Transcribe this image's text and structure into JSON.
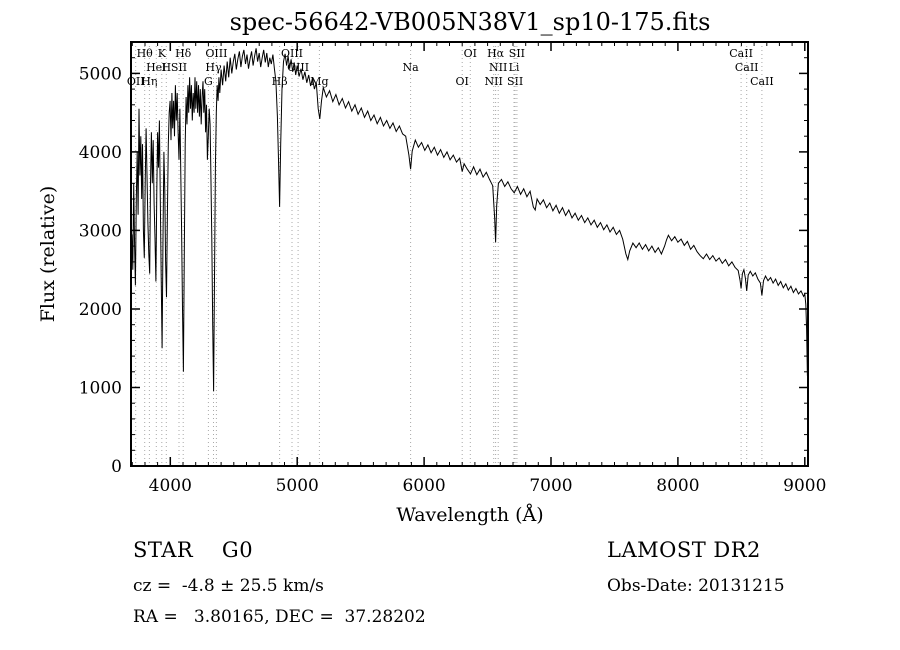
{
  "title": "spec-56642-VB005N38V1_sp10-175.fits",
  "footer": {
    "class_label": "STAR    G0",
    "survey": "LAMOST DR2",
    "cz": "cz =  -4.8 ± 25.5 km/s",
    "obs_date": "Obs-Date: 20131215",
    "coords": "RA =   3.80165, DEC =  37.28202"
  },
  "chart_data": {
    "type": "line",
    "title": "spec-56642-VB005N38V1_sp10-175.fits",
    "xlabel": "Wavelength (Å)",
    "ylabel": "Flux (relative)",
    "xlim": [
      3690,
      9025
    ],
    "ylim": [
      0,
      5400
    ],
    "x_ticks": [
      4000,
      5000,
      6000,
      7000,
      8000,
      9000
    ],
    "y_ticks": [
      0,
      1000,
      2000,
      3000,
      4000,
      5000
    ],
    "x_minor_step": 100,
    "y_minor_step": 200,
    "grid": false,
    "legend": "none",
    "line_color": "#000000",
    "marker_line_color": "#a9a9a9",
    "line_markers": [
      {
        "label": "OII",
        "wavelength": 3727,
        "row": 2
      },
      {
        "label": "Hθ",
        "wavelength": 3798,
        "row": 0
      },
      {
        "label": "Hη",
        "wavelength": 3835,
        "row": 2
      },
      {
        "label": "HeI",
        "wavelength": 3889,
        "row": 1
      },
      {
        "label": "K",
        "wavelength": 3933,
        "row": 0
      },
      {
        "label": "H",
        "wavelength": 3968,
        "row": 1
      },
      {
        "label": "SII",
        "wavelength": 4068,
        "row": 1
      },
      {
        "label": "Hδ",
        "wavelength": 4101,
        "row": 0
      },
      {
        "label": "G",
        "wavelength": 4300,
        "row": 2
      },
      {
        "label": "Hγ",
        "wavelength": 4340,
        "row": 1
      },
      {
        "label": "OIII",
        "wavelength": 4363,
        "row": 0
      },
      {
        "label": "Hβ",
        "wavelength": 4861,
        "row": 2
      },
      {
        "label": "OIII",
        "wavelength": 4959,
        "row": 0
      },
      {
        "label": "OIII",
        "wavelength": 5007,
        "row": 1
      },
      {
        "label": "Mg",
        "wavelength": 5175,
        "row": 2
      },
      {
        "label": "Na",
        "wavelength": 5893,
        "row": 1
      },
      {
        "label": "OI",
        "wavelength": 6300,
        "row": 2
      },
      {
        "label": "OI",
        "wavelength": 6364,
        "row": 0
      },
      {
        "label": "NII",
        "wavelength": 6548,
        "row": 2
      },
      {
        "label": "Hα",
        "wavelength": 6563,
        "row": 0
      },
      {
        "label": "NII",
        "wavelength": 6584,
        "row": 1
      },
      {
        "label": "Li",
        "wavelength": 6708,
        "row": 1
      },
      {
        "label": "SII",
        "wavelength": 6717,
        "row": 2
      },
      {
        "label": "SII",
        "wavelength": 6731,
        "row": 0
      },
      {
        "label": "CaII",
        "wavelength": 8498,
        "row": 0
      },
      {
        "label": "CaII",
        "wavelength": 8542,
        "row": 1
      },
      {
        "label": "CaII",
        "wavelength": 8662,
        "row": 2
      }
    ],
    "points": [
      [
        3690,
        2250
      ],
      [
        3697,
        2950
      ],
      [
        3704,
        2500
      ],
      [
        3711,
        3600
      ],
      [
        3718,
        2800
      ],
      [
        3725,
        2300
      ],
      [
        3732,
        3400
      ],
      [
        3739,
        4000
      ],
      [
        3746,
        3200
      ],
      [
        3753,
        4550
      ],
      [
        3760,
        3700
      ],
      [
        3767,
        4200
      ],
      [
        3774,
        3400
      ],
      [
        3781,
        4100
      ],
      [
        3788,
        3000
      ],
      [
        3795,
        2650
      ],
      [
        3802,
        3600
      ],
      [
        3809,
        4300
      ],
      [
        3816,
        3700
      ],
      [
        3823,
        3100
      ],
      [
        3830,
        2700
      ],
      [
        3837,
        2450
      ],
      [
        3844,
        3600
      ],
      [
        3851,
        4250
      ],
      [
        3858,
        3600
      ],
      [
        3865,
        4150
      ],
      [
        3872,
        3350
      ],
      [
        3879,
        2900
      ],
      [
        3886,
        2350
      ],
      [
        3893,
        3500
      ],
      [
        3900,
        4250
      ],
      [
        3907,
        3800
      ],
      [
        3914,
        4400
      ],
      [
        3921,
        3400
      ],
      [
        3928,
        2400
      ],
      [
        3935,
        1500
      ],
      [
        3942,
        2900
      ],
      [
        3949,
        4000
      ],
      [
        3956,
        3500
      ],
      [
        3963,
        2600
      ],
      [
        3970,
        2150
      ],
      [
        3977,
        3200
      ],
      [
        3984,
        4100
      ],
      [
        3991,
        4500
      ],
      [
        3998,
        4650
      ],
      [
        4005,
        4150
      ],
      [
        4012,
        4750
      ],
      [
        4019,
        4300
      ],
      [
        4026,
        4650
      ],
      [
        4033,
        4200
      ],
      [
        4040,
        4850
      ],
      [
        4047,
        4400
      ],
      [
        4054,
        4750
      ],
      [
        4061,
        4250
      ],
      [
        4068,
        3900
      ],
      [
        4075,
        4550
      ],
      [
        4082,
        3800
      ],
      [
        4089,
        3000
      ],
      [
        4096,
        2000
      ],
      [
        4103,
        1200
      ],
      [
        4110,
        2700
      ],
      [
        4117,
        4100
      ],
      [
        4124,
        4700
      ],
      [
        4131,
        4350
      ],
      [
        4138,
        4850
      ],
      [
        4145,
        4500
      ],
      [
        4152,
        4950
      ],
      [
        4159,
        4550
      ],
      [
        4166,
        4850
      ],
      [
        4173,
        4400
      ],
      [
        4180,
        4750
      ],
      [
        4187,
        4500
      ],
      [
        4194,
        4950
      ],
      [
        4201,
        4550
      ],
      [
        4208,
        4900
      ],
      [
        4215,
        4500
      ],
      [
        4222,
        4850
      ],
      [
        4229,
        4450
      ],
      [
        4236,
        4800
      ],
      [
        4243,
        4350
      ],
      [
        4250,
        4700
      ],
      [
        4257,
        4900
      ],
      [
        4264,
        4500
      ],
      [
        4271,
        4800
      ],
      [
        4278,
        4250
      ],
      [
        4285,
        4600
      ],
      [
        4292,
        3900
      ],
      [
        4299,
        4200
      ],
      [
        4306,
        4550
      ],
      [
        4313,
        4350
      ],
      [
        4320,
        3700
      ],
      [
        4327,
        2900
      ],
      [
        4334,
        1800
      ],
      [
        4341,
        950
      ],
      [
        4348,
        2400
      ],
      [
        4355,
        3800
      ],
      [
        4362,
        4500
      ],
      [
        4369,
        4850
      ],
      [
        4376,
        4650
      ],
      [
        4383,
        4950
      ],
      [
        4390,
        4750
      ],
      [
        4400,
        5050
      ],
      [
        4412,
        4850
      ],
      [
        4424,
        5100
      ],
      [
        4436,
        4900
      ],
      [
        4448,
        5150
      ],
      [
        4460,
        4950
      ],
      [
        4472,
        5200
      ],
      [
        4484,
        5000
      ],
      [
        4496,
        5150
      ],
      [
        4508,
        5250
      ],
      [
        4520,
        5050
      ],
      [
        4532,
        5180
      ],
      [
        4544,
        5280
      ],
      [
        4556,
        5080
      ],
      [
        4568,
        5220
      ],
      [
        4580,
        5300
      ],
      [
        4592,
        5120
      ],
      [
        4604,
        5240
      ],
      [
        4616,
        5060
      ],
      [
        4628,
        5180
      ],
      [
        4640,
        5280
      ],
      [
        4652,
        5100
      ],
      [
        4664,
        5220
      ],
      [
        4676,
        5320
      ],
      [
        4688,
        5150
      ],
      [
        4700,
        5260
      ],
      [
        4712,
        5080
      ],
      [
        4724,
        5200
      ],
      [
        4736,
        5300
      ],
      [
        4748,
        5140
      ],
      [
        4760,
        5260
      ],
      [
        4772,
        5080
      ],
      [
        4784,
        5200
      ],
      [
        4796,
        5120
      ],
      [
        4808,
        5240
      ],
      [
        4820,
        5060
      ],
      [
        4832,
        4900
      ],
      [
        4844,
        4450
      ],
      [
        4852,
        3900
      ],
      [
        4861,
        3300
      ],
      [
        4870,
        4100
      ],
      [
        4880,
        4800
      ],
      [
        4892,
        5150
      ],
      [
        4904,
        5250
      ],
      [
        4916,
        5100
      ],
      [
        4928,
        5220
      ],
      [
        4940,
        5060
      ],
      [
        4952,
        5180
      ],
      [
        4964,
        5020
      ],
      [
        4976,
        5140
      ],
      [
        4988,
        4980
      ],
      [
        5000,
        5100
      ],
      [
        5015,
        4960
      ],
      [
        5030,
        5060
      ],
      [
        5045,
        4920
      ],
      [
        5060,
        5020
      ],
      [
        5075,
        4880
      ],
      [
        5090,
        4980
      ],
      [
        5105,
        4840
      ],
      [
        5120,
        4940
      ],
      [
        5135,
        4800
      ],
      [
        5150,
        4880
      ],
      [
        5165,
        4550
      ],
      [
        5178,
        4420
      ],
      [
        5191,
        4650
      ],
      [
        5205,
        4820
      ],
      [
        5230,
        4700
      ],
      [
        5255,
        4780
      ],
      [
        5280,
        4640
      ],
      [
        5305,
        4730
      ],
      [
        5330,
        4600
      ],
      [
        5355,
        4680
      ],
      [
        5380,
        4560
      ],
      [
        5405,
        4640
      ],
      [
        5430,
        4520
      ],
      [
        5455,
        4600
      ],
      [
        5480,
        4480
      ],
      [
        5505,
        4560
      ],
      [
        5530,
        4440
      ],
      [
        5555,
        4520
      ],
      [
        5580,
        4400
      ],
      [
        5605,
        4470
      ],
      [
        5630,
        4360
      ],
      [
        5655,
        4440
      ],
      [
        5680,
        4330
      ],
      [
        5705,
        4400
      ],
      [
        5730,
        4300
      ],
      [
        5755,
        4370
      ],
      [
        5780,
        4260
      ],
      [
        5805,
        4330
      ],
      [
        5830,
        4230
      ],
      [
        5855,
        4200
      ],
      [
        5880,
        3960
      ],
      [
        5893,
        3780
      ],
      [
        5906,
        4010
      ],
      [
        5930,
        4150
      ],
      [
        5955,
        4060
      ],
      [
        5980,
        4120
      ],
      [
        6005,
        4020
      ],
      [
        6030,
        4090
      ],
      [
        6055,
        3990
      ],
      [
        6080,
        4060
      ],
      [
        6105,
        3960
      ],
      [
        6130,
        4030
      ],
      [
        6155,
        3930
      ],
      [
        6180,
        4000
      ],
      [
        6205,
        3900
      ],
      [
        6230,
        3960
      ],
      [
        6255,
        3870
      ],
      [
        6280,
        3920
      ],
      [
        6300,
        3750
      ],
      [
        6315,
        3850
      ],
      [
        6340,
        3780
      ],
      [
        6365,
        3720
      ],
      [
        6390,
        3810
      ],
      [
        6415,
        3710
      ],
      [
        6440,
        3780
      ],
      [
        6465,
        3680
      ],
      [
        6490,
        3740
      ],
      [
        6515,
        3650
      ],
      [
        6540,
        3570
      ],
      [
        6556,
        3150
      ],
      [
        6563,
        2850
      ],
      [
        6572,
        3320
      ],
      [
        6585,
        3600
      ],
      [
        6610,
        3650
      ],
      [
        6635,
        3560
      ],
      [
        6660,
        3620
      ],
      [
        6685,
        3530
      ],
      [
        6710,
        3480
      ],
      [
        6735,
        3560
      ],
      [
        6760,
        3460
      ],
      [
        6785,
        3530
      ],
      [
        6810,
        3430
      ],
      [
        6835,
        3500
      ],
      [
        6860,
        3300
      ],
      [
        6875,
        3260
      ],
      [
        6890,
        3400
      ],
      [
        6915,
        3330
      ],
      [
        6940,
        3390
      ],
      [
        6965,
        3290
      ],
      [
        6990,
        3350
      ],
      [
        7015,
        3250
      ],
      [
        7040,
        3320
      ],
      [
        7065,
        3220
      ],
      [
        7090,
        3290
      ],
      [
        7115,
        3190
      ],
      [
        7140,
        3260
      ],
      [
        7165,
        3160
      ],
      [
        7190,
        3220
      ],
      [
        7215,
        3130
      ],
      [
        7240,
        3190
      ],
      [
        7265,
        3100
      ],
      [
        7290,
        3160
      ],
      [
        7315,
        3070
      ],
      [
        7340,
        3130
      ],
      [
        7365,
        3040
      ],
      [
        7390,
        3100
      ],
      [
        7415,
        3010
      ],
      [
        7440,
        3070
      ],
      [
        7465,
        2980
      ],
      [
        7490,
        3040
      ],
      [
        7515,
        2950
      ],
      [
        7540,
        3000
      ],
      [
        7565,
        2890
      ],
      [
        7590,
        2700
      ],
      [
        7605,
        2630
      ],
      [
        7620,
        2740
      ],
      [
        7645,
        2840
      ],
      [
        7670,
        2780
      ],
      [
        7695,
        2840
      ],
      [
        7720,
        2760
      ],
      [
        7745,
        2820
      ],
      [
        7770,
        2740
      ],
      [
        7795,
        2800
      ],
      [
        7820,
        2720
      ],
      [
        7845,
        2780
      ],
      [
        7870,
        2700
      ],
      [
        7895,
        2800
      ],
      [
        7910,
        2880
      ],
      [
        7925,
        2940
      ],
      [
        7950,
        2870
      ],
      [
        7975,
        2920
      ],
      [
        8000,
        2850
      ],
      [
        8025,
        2890
      ],
      [
        8050,
        2810
      ],
      [
        8075,
        2860
      ],
      [
        8100,
        2760
      ],
      [
        8125,
        2810
      ],
      [
        8150,
        2730
      ],
      [
        8175,
        2680
      ],
      [
        8200,
        2640
      ],
      [
        8225,
        2700
      ],
      [
        8250,
        2630
      ],
      [
        8275,
        2680
      ],
      [
        8300,
        2610
      ],
      [
        8325,
        2650
      ],
      [
        8350,
        2580
      ],
      [
        8375,
        2630
      ],
      [
        8400,
        2550
      ],
      [
        8425,
        2600
      ],
      [
        8450,
        2530
      ],
      [
        8475,
        2490
      ],
      [
        8490,
        2360
      ],
      [
        8498,
        2260
      ],
      [
        8508,
        2450
      ],
      [
        8520,
        2500
      ],
      [
        8532,
        2390
      ],
      [
        8542,
        2230
      ],
      [
        8554,
        2430
      ],
      [
        8570,
        2480
      ],
      [
        8590,
        2420
      ],
      [
        8610,
        2460
      ],
      [
        8630,
        2380
      ],
      [
        8650,
        2330
      ],
      [
        8662,
        2170
      ],
      [
        8674,
        2360
      ],
      [
        8690,
        2420
      ],
      [
        8710,
        2360
      ],
      [
        8730,
        2400
      ],
      [
        8750,
        2330
      ],
      [
        8770,
        2380
      ],
      [
        8790,
        2300
      ],
      [
        8810,
        2350
      ],
      [
        8830,
        2270
      ],
      [
        8850,
        2320
      ],
      [
        8870,
        2240
      ],
      [
        8890,
        2290
      ],
      [
        8910,
        2210
      ],
      [
        8930,
        2260
      ],
      [
        8950,
        2190
      ],
      [
        8970,
        2230
      ],
      [
        8990,
        2160
      ],
      [
        9000,
        2190
      ],
      [
        9008,
        2060
      ],
      [
        9014,
        1750
      ],
      [
        9020,
        1150
      ]
    ]
  }
}
